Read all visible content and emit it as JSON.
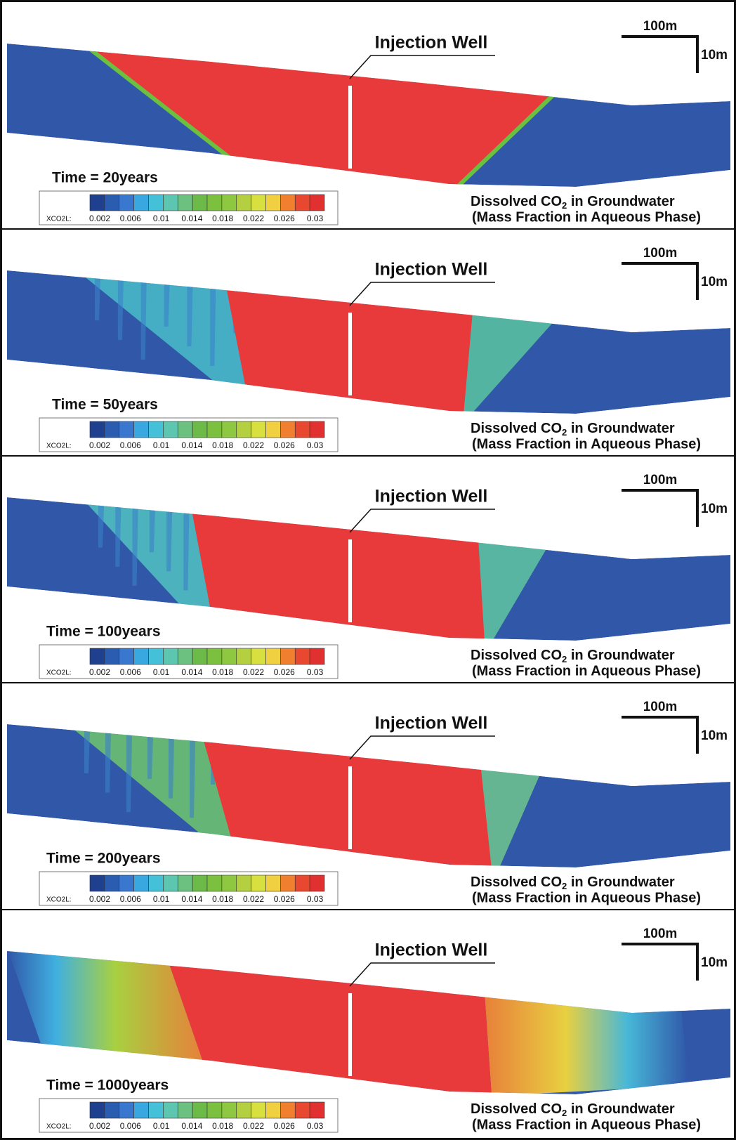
{
  "panels": [
    {
      "well_label": "Injection Well",
      "scale_horizontal": "100m",
      "scale_vertical": "10m",
      "time_label": "Time = 20years",
      "colorbar": {
        "label": "XCO2L:",
        "ticks": [
          0.002,
          0.006,
          0.01,
          0.014,
          0.018,
          0.022,
          0.026,
          0.03
        ]
      },
      "caption": {
        "line1_start": "Dissolved CO",
        "line1_subscript": "2",
        "line1_end": " in Groundwater",
        "line2": "(Mass Fraction in Aqueous Phase)"
      }
    },
    {
      "well_label": "Injection Well",
      "scale_horizontal": "100m",
      "scale_vertical": "10m",
      "time_label": "Time = 50years",
      "colorbar": {
        "label": "XCO2L:",
        "ticks": [
          0.002,
          0.006,
          0.01,
          0.014,
          0.018,
          0.022,
          0.026,
          0.03
        ]
      },
      "caption": {
        "line1_start": "Dissolved CO",
        "line1_subscript": "2",
        "line1_end": " in Groundwater",
        "line2": "(Mass Fraction in Aqueous Phase)"
      }
    },
    {
      "well_label": "Injection Well",
      "scale_horizontal": "100m",
      "scale_vertical": "10m",
      "time_label": "Time = 100years",
      "colorbar": {
        "label": "XCO2L:",
        "ticks": [
          0.002,
          0.006,
          0.01,
          0.014,
          0.018,
          0.022,
          0.026,
          0.03
        ]
      },
      "caption": {
        "line1_start": "Dissolved CO",
        "line1_subscript": "2",
        "line1_end": " in Groundwater",
        "line2": "(Mass Fraction in Aqueous Phase)"
      }
    },
    {
      "well_label": "Injection Well",
      "scale_horizontal": "100m",
      "scale_vertical": "10m",
      "time_label": "Time = 200years",
      "colorbar": {
        "label": "XCO2L:",
        "ticks": [
          0.002,
          0.006,
          0.01,
          0.014,
          0.018,
          0.022,
          0.026,
          0.03
        ]
      },
      "caption": {
        "line1_start": "Dissolved CO",
        "line1_subscript": "2",
        "line1_end": " in Groundwater",
        "line2": "(Mass Fraction in Aqueous Phase)"
      }
    },
    {
      "well_label": "Injection Well",
      "scale_horizontal": "100m",
      "scale_vertical": "10m",
      "time_label": "Time = 1000years",
      "colorbar": {
        "label": "XCO2L:",
        "ticks": [
          0.002,
          0.006,
          0.01,
          0.014,
          0.018,
          0.022,
          0.026,
          0.03
        ]
      },
      "caption": {
        "line1_start": "Dissolved CO",
        "line1_subscript": "2",
        "line1_end": " in Groundwater",
        "line2": "(Mass Fraction in Aqueous Phase)"
      }
    }
  ],
  "colorbar_colors": [
    "#1f3f8f",
    "#2a5cb0",
    "#3a78d0",
    "#3aa8e0",
    "#44c0d8",
    "#5cc6b0",
    "#6cc080",
    "#6cba48",
    "#7cc040",
    "#8ec840",
    "#b4d040",
    "#d8e040",
    "#f0d040",
    "#f08030",
    "#e84830",
    "#e03030"
  ]
}
